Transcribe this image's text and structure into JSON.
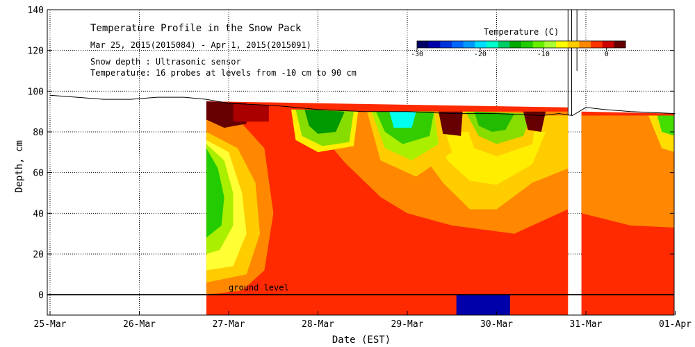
{
  "chart_data": {
    "type": "heatmap",
    "title": "Temperature Profile in the Snow Pack",
    "date_range": "Mar 25, 2015(2015084) - Apr  1, 2015(2015091)",
    "note_depth": "Snow depth : Ultrasonic sensor",
    "note_temp": "Temperature: 16 probes at levels from -10 cm to 90 cm",
    "xlabel": "Date (EST)",
    "ylabel": "Depth, cm",
    "x_ticks": [
      "25-Mar",
      "26-Mar",
      "27-Mar",
      "28-Mar",
      "29-Mar",
      "30-Mar",
      "31-Mar",
      "01-Apr"
    ],
    "xlim_days": [
      0,
      7
    ],
    "ylim": [
      -10,
      140
    ],
    "y_ticks": [
      0,
      20,
      40,
      60,
      80,
      100,
      120,
      140
    ],
    "ground_label": "ground level",
    "colorbar": {
      "title": "Temperature (C)",
      "min": -30,
      "max": 3,
      "tick_values": [
        -30,
        -20,
        -10,
        0
      ],
      "tick_labels": [
        "-30",
        "-20",
        "-10",
        "0"
      ],
      "colors": [
        "#000066",
        "#0000aa",
        "#0033dd",
        "#0066ff",
        "#0099ff",
        "#00ddff",
        "#00ffcc",
        "#00cc66",
        "#00aa00",
        "#22cc00",
        "#66ee00",
        "#aaff33",
        "#ffff00",
        "#ffcc00",
        "#ff8800",
        "#ff3300",
        "#cc0000",
        "#660000"
      ]
    },
    "snow_depth": {
      "x_days": [
        0,
        0.3,
        0.6,
        0.9,
        1.2,
        1.5,
        1.75,
        2.0,
        2.5,
        3.0,
        3.5,
        4.0,
        4.5,
        5.0,
        5.5,
        5.7,
        5.85,
        6.0,
        6.2,
        6.5,
        7.0
      ],
      "depth_cm": [
        98,
        97,
        96,
        96,
        97,
        97,
        96,
        94,
        93,
        91,
        90,
        90,
        89,
        89,
        88,
        89,
        88,
        92,
        91,
        90,
        89
      ]
    },
    "regions": [
      {
        "name": "snowpack-base-warm",
        "color": "#ff2a00",
        "poly": [
          [
            1.75,
            -10
          ],
          [
            5.8,
            -10
          ],
          [
            5.8,
            92
          ],
          [
            1.75,
            95
          ]
        ]
      },
      {
        "name": "late-snowpack-base",
        "color": "#ff2a00",
        "poly": [
          [
            5.95,
            -10
          ],
          [
            7.0,
            -10
          ],
          [
            7.0,
            89
          ],
          [
            5.95,
            90
          ]
        ]
      },
      {
        "name": "mid-layer-orange",
        "color": "#ff8800",
        "poly": [
          [
            3.05,
            90
          ],
          [
            5.8,
            90
          ],
          [
            5.8,
            42
          ],
          [
            5.2,
            30
          ],
          [
            4.5,
            34
          ],
          [
            4.0,
            40
          ],
          [
            3.7,
            48
          ],
          [
            3.3,
            65
          ],
          [
            3.05,
            78
          ]
        ]
      },
      {
        "name": "mid-layer-orange-late",
        "color": "#ff8800",
        "poly": [
          [
            5.95,
            88
          ],
          [
            7.0,
            88
          ],
          [
            7.0,
            33
          ],
          [
            6.5,
            34
          ],
          [
            5.95,
            40
          ]
        ]
      },
      {
        "name": "warm-band-yellow",
        "color": "#ffcc00",
        "poly": [
          [
            4.05,
            88
          ],
          [
            5.8,
            88
          ],
          [
            5.8,
            62
          ],
          [
            5.4,
            55
          ],
          [
            5.0,
            42
          ],
          [
            4.7,
            42
          ],
          [
            4.4,
            55
          ],
          [
            4.15,
            70
          ]
        ]
      },
      {
        "name": "yellow-pocket-b",
        "color": "#ffee00",
        "poly": [
          [
            4.3,
            80
          ],
          [
            5.55,
            80
          ],
          [
            5.4,
            64
          ],
          [
            5.0,
            54
          ],
          [
            4.7,
            56
          ],
          [
            4.45,
            66
          ]
        ]
      },
      {
        "name": "day27-edge-orange",
        "color": "#ff8800",
        "poly": [
          [
            1.75,
            87
          ],
          [
            2.15,
            84
          ],
          [
            2.4,
            72
          ],
          [
            2.5,
            40
          ],
          [
            2.4,
            12
          ],
          [
            2.15,
            2
          ],
          [
            1.75,
            0
          ]
        ]
      },
      {
        "name": "day27-yellow",
        "color": "#ffcc00",
        "poly": [
          [
            1.75,
            80
          ],
          [
            2.1,
            72
          ],
          [
            2.3,
            55
          ],
          [
            2.35,
            30
          ],
          [
            2.2,
            10
          ],
          [
            1.75,
            6
          ]
        ]
      },
      {
        "name": "day27-yellow-light",
        "color": "#ffff33",
        "poly": [
          [
            1.75,
            76
          ],
          [
            2.0,
            70
          ],
          [
            2.15,
            50
          ],
          [
            2.2,
            30
          ],
          [
            2.05,
            14
          ],
          [
            1.75,
            12
          ]
        ]
      },
      {
        "name": "day27-light-green",
        "color": "#aaee00",
        "poly": [
          [
            1.75,
            74
          ],
          [
            1.95,
            66
          ],
          [
            2.05,
            50
          ],
          [
            2.05,
            34
          ],
          [
            1.9,
            22
          ],
          [
            1.75,
            20
          ]
        ]
      },
      {
        "name": "day27-green",
        "color": "#22cc00",
        "poly": [
          [
            1.75,
            72
          ],
          [
            1.88,
            62
          ],
          [
            1.95,
            48
          ],
          [
            1.92,
            34
          ],
          [
            1.75,
            28
          ]
        ]
      },
      {
        "name": "top-crust-dark",
        "color": "#660000",
        "poly": [
          [
            1.75,
            95
          ],
          [
            2.2,
            94
          ],
          [
            2.2,
            84
          ],
          [
            1.95,
            82
          ],
          [
            1.75,
            86
          ]
        ]
      },
      {
        "name": "top-crust-dark-2",
        "color": "#aa0000",
        "poly": [
          [
            2.05,
            94
          ],
          [
            2.45,
            93
          ],
          [
            2.45,
            85
          ],
          [
            2.05,
            85
          ]
        ]
      },
      {
        "name": "cold-dip-28mar-yellow",
        "color": "#ffee00",
        "poly": [
          [
            2.7,
            91
          ],
          [
            3.45,
            90
          ],
          [
            3.4,
            73
          ],
          [
            3.0,
            70
          ],
          [
            2.75,
            76
          ]
        ]
      },
      {
        "name": "cold-dip-28mar-green",
        "color": "#88dd00",
        "poly": [
          [
            2.75,
            91
          ],
          [
            3.4,
            90
          ],
          [
            3.35,
            75
          ],
          [
            3.05,
            73
          ],
          [
            2.82,
            78
          ]
        ]
      },
      {
        "name": "cold-dip-28mar-dark",
        "color": "#009900",
        "poly": [
          [
            2.85,
            91
          ],
          [
            3.3,
            90
          ],
          [
            3.2,
            80
          ],
          [
            3.0,
            79
          ],
          [
            2.9,
            83
          ]
        ]
      },
      {
        "name": "cold-dip-29mar-yellow",
        "color": "#ffcc00",
        "poly": [
          [
            3.55,
            90
          ],
          [
            4.35,
            90
          ],
          [
            4.5,
            70
          ],
          [
            4.1,
            58
          ],
          [
            3.7,
            66
          ]
        ]
      },
      {
        "name": "cold-dip-29mar-green",
        "color": "#aaee00",
        "poly": [
          [
            3.6,
            90
          ],
          [
            4.3,
            90
          ],
          [
            4.35,
            74
          ],
          [
            4.05,
            66
          ],
          [
            3.75,
            72
          ]
        ]
      },
      {
        "name": "cold-dip-29mar-green2",
        "color": "#33cc00",
        "poly": [
          [
            3.65,
            90
          ],
          [
            4.3,
            90
          ],
          [
            4.25,
            78
          ],
          [
            3.95,
            74
          ],
          [
            3.75,
            80
          ]
        ]
      },
      {
        "name": "cold-dip-29mar-cyan",
        "color": "#00ffee",
        "poly": [
          [
            3.8,
            90
          ],
          [
            4.1,
            90
          ],
          [
            4.05,
            82
          ],
          [
            3.85,
            82
          ]
        ]
      },
      {
        "name": "cold-dip-30mar-yellow",
        "color": "#ffcc00",
        "poly": [
          [
            4.6,
            90
          ],
          [
            5.45,
            89
          ],
          [
            5.4,
            74
          ],
          [
            5.0,
            68
          ],
          [
            4.75,
            72
          ]
        ]
      },
      {
        "name": "cold-dip-30mar-green",
        "color": "#88dd00",
        "poly": [
          [
            4.65,
            90
          ],
          [
            5.4,
            89
          ],
          [
            5.3,
            78
          ],
          [
            5.0,
            74
          ],
          [
            4.8,
            78
          ]
        ]
      },
      {
        "name": "cold-dip-30mar-green2",
        "color": "#22bb00",
        "poly": [
          [
            4.75,
            90
          ],
          [
            5.2,
            89
          ],
          [
            5.1,
            81
          ],
          [
            4.95,
            80
          ],
          [
            4.8,
            83
          ]
        ]
      },
      {
        "name": "dark-crust-30mar",
        "color": "#660000",
        "poly": [
          [
            4.35,
            90
          ],
          [
            4.62,
            90
          ],
          [
            4.6,
            78
          ],
          [
            4.4,
            79
          ]
        ]
      },
      {
        "name": "dark-crust-31mar",
        "color": "#660000",
        "poly": [
          [
            5.3,
            90
          ],
          [
            5.55,
            90
          ],
          [
            5.5,
            80
          ],
          [
            5.35,
            81
          ]
        ]
      },
      {
        "name": "right-edge-yellow",
        "color": "#ffdd00",
        "poly": [
          [
            6.7,
            88
          ],
          [
            7.0,
            88
          ],
          [
            7.0,
            70
          ],
          [
            6.85,
            72
          ]
        ]
      },
      {
        "name": "right-edge-green",
        "color": "#44dd00",
        "poly": [
          [
            6.8,
            88
          ],
          [
            7.0,
            88
          ],
          [
            7.0,
            78
          ],
          [
            6.85,
            80
          ]
        ]
      },
      {
        "name": "soil-cold-blue",
        "color": "#0000aa",
        "poly": [
          [
            4.55,
            -10
          ],
          [
            5.15,
            -10
          ],
          [
            5.15,
            0
          ],
          [
            4.55,
            0
          ]
        ]
      }
    ]
  }
}
